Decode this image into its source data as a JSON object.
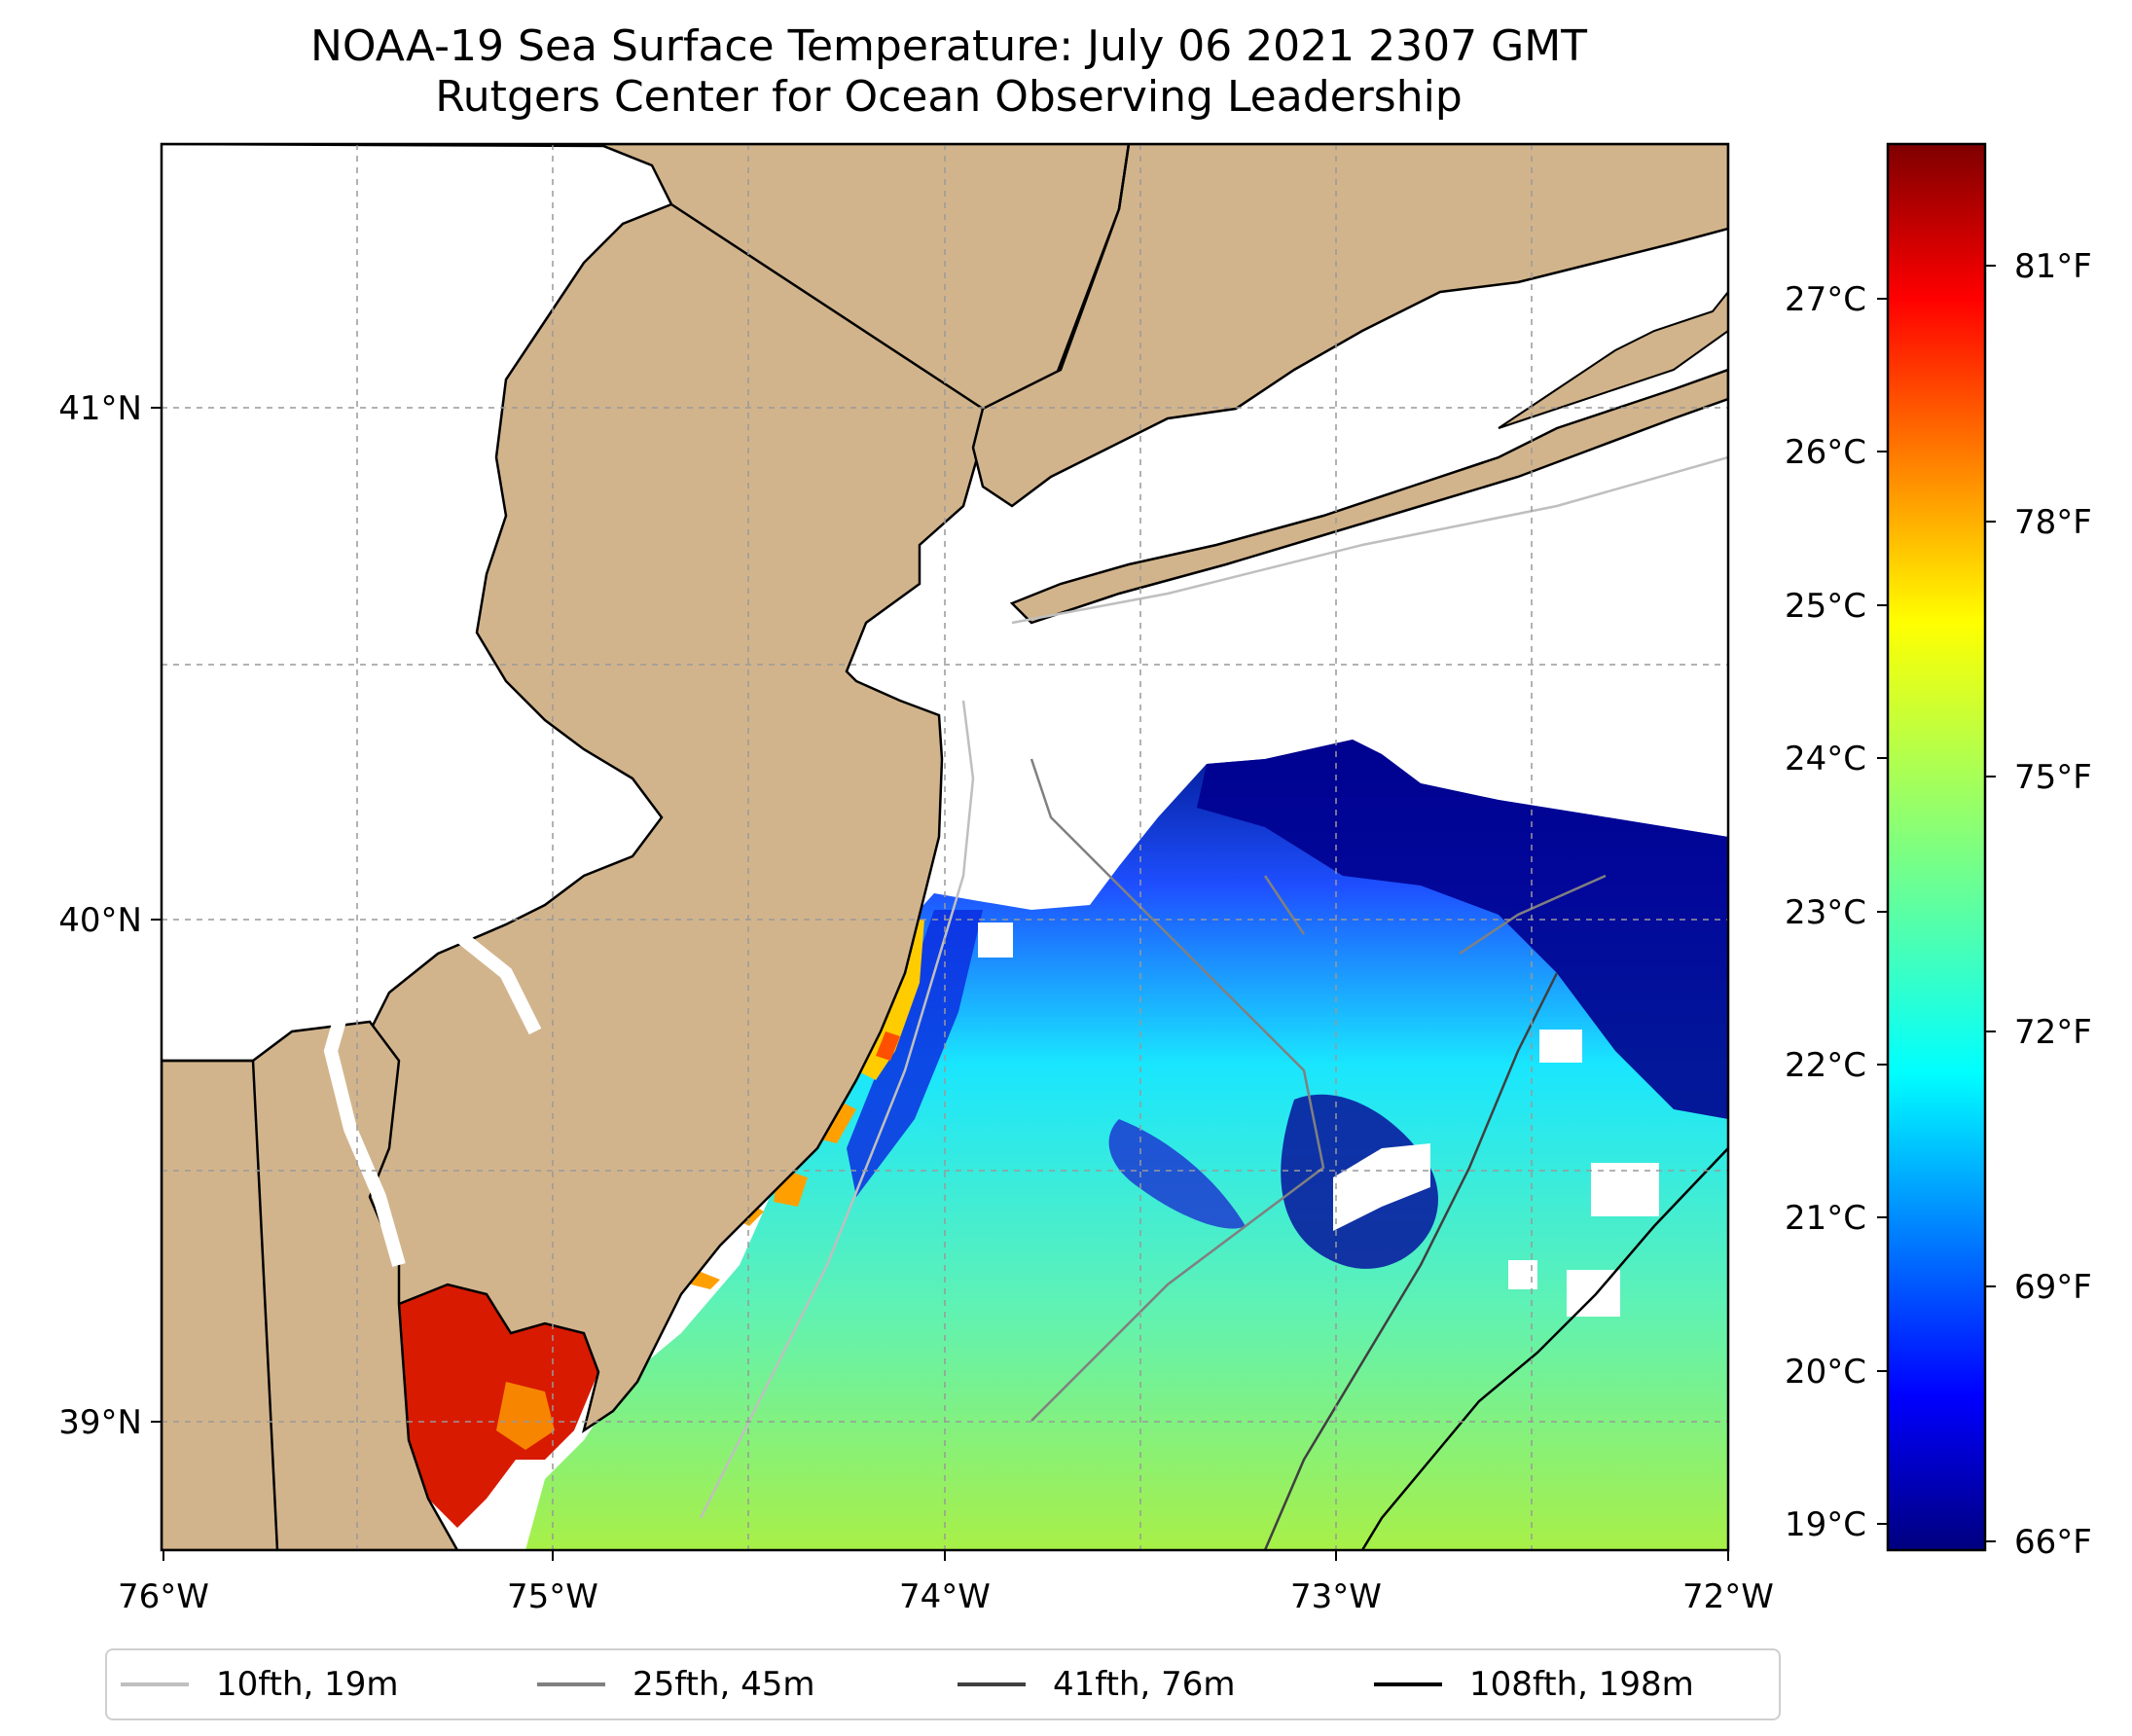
{
  "title": {
    "line1": "NOAA-19 Sea Surface Temperature: July 06 2021 2307 GMT",
    "line2": "Rutgers Center for Ocean Observing Leadership"
  },
  "map": {
    "lon_range": [
      -76,
      -72
    ],
    "lat_range": [
      38.75,
      41.5
    ],
    "x_ticks": [
      "76°W",
      "75°W",
      "74°W",
      "73°W",
      "72°W"
    ],
    "y_ticks": [
      "41°N",
      "40°N",
      "39°N"
    ],
    "gridlines": true,
    "land_color": "#d2b48c",
    "no_data_color": "#ffffff"
  },
  "colorbar": {
    "colormap": "jet",
    "celsius_ticks": [
      "27°C",
      "26°C",
      "25°C",
      "24°C",
      "23°C",
      "22°C",
      "21°C",
      "20°C",
      "19°C"
    ],
    "fahrenheit_ticks": [
      "81°F",
      "78°F",
      "75°F",
      "72°F",
      "69°F",
      "66°F"
    ],
    "range_celsius": [
      18.9,
      28.2
    ]
  },
  "legend": [
    {
      "label": "10fth, 19m",
      "color": "#bfbfbf"
    },
    {
      "label": "25fth, 45m",
      "color": "#808080"
    },
    {
      "label": "41fth, 76m",
      "color": "#404040"
    },
    {
      "label": "108fth, 198m",
      "color": "#000000"
    }
  ]
}
